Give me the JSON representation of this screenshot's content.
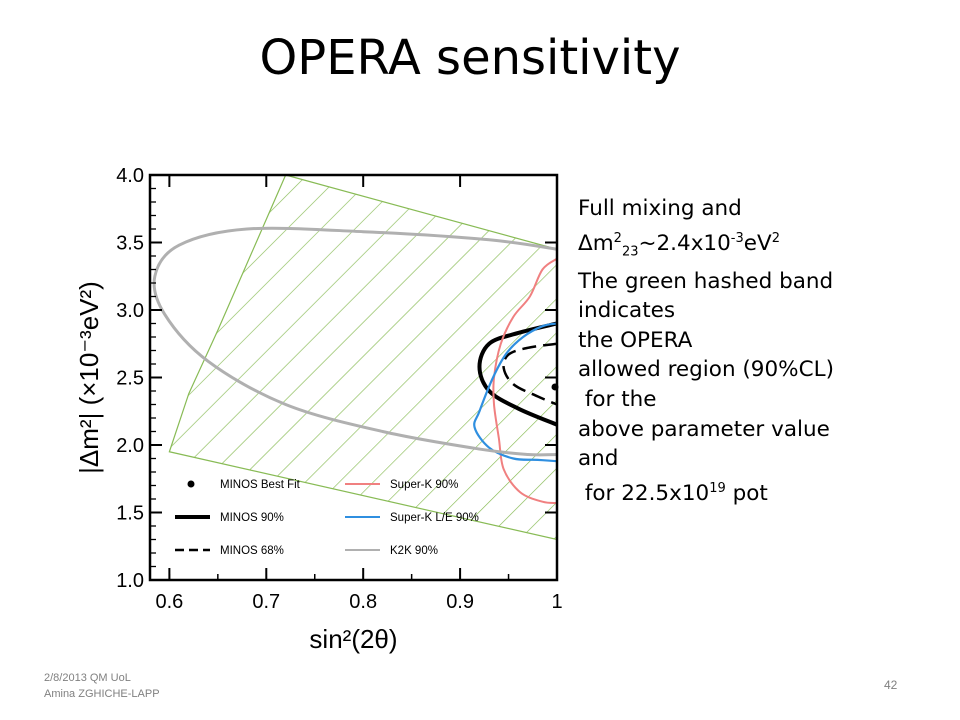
{
  "slide": {
    "title": "OPERA sensitivity",
    "side_text": {
      "line1": "Full mixing and",
      "line2_prefix": "Δm",
      "line2_sup1": "2",
      "line2_sub": "23",
      "line2_mid": "~2.4x10",
      "line2_sup2": "-3",
      "line2_unit": "eV",
      "line2_sup3": "2",
      "line3": "The green hashed band",
      "line4": "indicates",
      "line5": "the OPERA",
      "line6": "allowed region (90%CL)",
      "line7": " for the",
      "line8": "above parameter value",
      "line9": "and",
      "line10_prefix": " for 22.5x10",
      "line10_sup": "19",
      "line10_suffix": " pot"
    },
    "footer": {
      "date_line": "2/8/2013 QM UoL",
      "author": "Amina ZGHICHE-LAPP"
    },
    "slide_number": "42"
  },
  "chart_data": {
    "type": "line",
    "xlabel": "sin²(2θ)",
    "ylabel": "|Δm²| (×10⁻³eV²)",
    "xlim": [
      0.58,
      1.0
    ],
    "ylim": [
      1.0,
      4.0
    ],
    "x_ticks": [
      "0.6",
      "0.7",
      "0.8",
      "0.9",
      "1"
    ],
    "y_ticks": [
      "1.0",
      "1.5",
      "2.0",
      "2.5",
      "3.0",
      "3.5",
      "4.0"
    ],
    "grid": false,
    "colors": {
      "minos90": "#000000",
      "minos68": "#000000",
      "superk90": "#f08080",
      "superkle90": "#2f8fe0",
      "k2k90": "#b0b0b0",
      "opera_band": "#88bb55"
    },
    "series": [
      {
        "name": "MINOS Best Fit",
        "style": "point",
        "points": [
          [
            1.0,
            2.43
          ]
        ]
      },
      {
        "name": "MINOS 90%",
        "style": "solid-thick",
        "points": [
          [
            1.0,
            2.9
          ],
          [
            0.96,
            2.83
          ],
          [
            0.93,
            2.75
          ],
          [
            0.92,
            2.58
          ],
          [
            0.93,
            2.4
          ],
          [
            0.96,
            2.27
          ],
          [
            1.0,
            2.15
          ]
        ]
      },
      {
        "name": "MINOS 68%",
        "style": "dashed",
        "points": [
          [
            1.0,
            2.75
          ],
          [
            0.97,
            2.72
          ],
          [
            0.95,
            2.67
          ],
          [
            0.945,
            2.57
          ],
          [
            0.955,
            2.45
          ],
          [
            0.98,
            2.36
          ],
          [
            1.0,
            2.3
          ]
        ]
      },
      {
        "name": "Super-K 90%",
        "style": "solid",
        "points": [
          [
            1.0,
            3.38
          ],
          [
            0.985,
            3.3
          ],
          [
            0.972,
            3.1
          ],
          [
            0.955,
            2.95
          ],
          [
            0.942,
            2.75
          ],
          [
            0.935,
            2.5
          ],
          [
            0.935,
            2.3
          ],
          [
            0.94,
            2.05
          ],
          [
            0.945,
            1.82
          ],
          [
            0.962,
            1.65
          ],
          [
            0.985,
            1.58
          ],
          [
            1.0,
            1.57
          ]
        ]
      },
      {
        "name": "Super-K L/E 90%",
        "style": "solid",
        "points": [
          [
            1.0,
            2.9
          ],
          [
            0.985,
            2.88
          ],
          [
            0.965,
            2.8
          ],
          [
            0.948,
            2.68
          ],
          [
            0.934,
            2.5
          ],
          [
            0.92,
            2.25
          ],
          [
            0.915,
            2.13
          ],
          [
            0.93,
            1.98
          ],
          [
            0.955,
            1.9
          ],
          [
            0.98,
            1.89
          ],
          [
            1.0,
            1.88
          ]
        ]
      },
      {
        "name": "K2K 90%",
        "style": "solid",
        "points": [
          [
            1.0,
            3.45
          ],
          [
            0.93,
            3.52
          ],
          [
            0.8,
            3.58
          ],
          [
            0.68,
            3.6
          ],
          [
            0.61,
            3.48
          ],
          [
            0.585,
            3.25
          ],
          [
            0.595,
            2.97
          ],
          [
            0.64,
            2.62
          ],
          [
            0.72,
            2.3
          ],
          [
            0.82,
            2.1
          ],
          [
            0.92,
            1.97
          ],
          [
            0.97,
            1.93
          ],
          [
            1.0,
            1.93
          ]
        ]
      }
    ],
    "opera_band": {
      "polygon": [
        [
          0.6,
          1.95
        ],
        [
          0.62,
          2.38
        ],
        [
          0.65,
          2.85
        ],
        [
          0.72,
          4.0
        ],
        [
          1.0,
          3.45
        ],
        [
          1.0,
          1.3
        ]
      ],
      "fill": "hatched"
    },
    "legend": {
      "position": "bottom",
      "entries": [
        {
          "label": "MINOS Best Fit",
          "marker": "dot"
        },
        {
          "label": "MINOS 90%",
          "marker": "solid-thick"
        },
        {
          "label": "MINOS 68%",
          "marker": "dashed"
        },
        {
          "label": "Super-K 90%",
          "marker": "line",
          "color": "#f08080"
        },
        {
          "label": "Super-K L/E 90%",
          "marker": "line",
          "color": "#2f8fe0"
        },
        {
          "label": "K2K 90%",
          "marker": "line",
          "color": "#b0b0b0"
        }
      ]
    }
  }
}
